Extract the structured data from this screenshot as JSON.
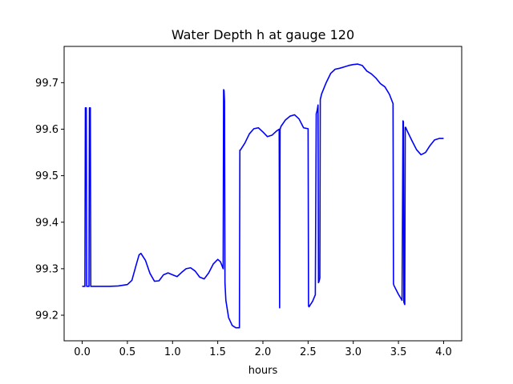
{
  "chart_data": {
    "type": "line",
    "title": "Water Depth h at gauge 120",
    "xlabel": "hours",
    "ylabel": "",
    "xlim": [
      -0.2,
      4.2
    ],
    "ylim": [
      99.145,
      99.778
    ],
    "xticks": [
      0.0,
      0.5,
      1.0,
      1.5,
      2.0,
      2.5,
      3.0,
      3.5,
      4.0
    ],
    "xtick_labels": [
      "0.0",
      "0.5",
      "1.0",
      "1.5",
      "2.0",
      "2.5",
      "3.0",
      "3.5",
      "4.0"
    ],
    "yticks": [
      99.2,
      99.3,
      99.4,
      99.5,
      99.6,
      99.7
    ],
    "ytick_labels": [
      "99.2",
      "99.3",
      "99.4",
      "99.5",
      "99.6",
      "99.7"
    ],
    "grid": false,
    "color": "#0000ff",
    "series": [
      {
        "x": [
          0.0,
          0.03,
          0.035,
          0.045,
          0.05,
          0.055,
          0.075,
          0.08,
          0.09,
          0.095,
          0.1,
          0.3,
          0.4,
          0.5,
          0.55,
          0.6,
          0.63,
          0.65,
          0.7,
          0.75,
          0.8,
          0.85,
          0.9,
          0.95,
          1.0,
          1.05,
          1.1,
          1.15,
          1.2,
          1.25,
          1.3,
          1.35,
          1.4,
          1.45,
          1.5,
          1.53,
          1.55,
          1.56,
          1.565,
          1.57,
          1.575,
          1.58,
          1.59,
          1.62,
          1.66,
          1.7,
          1.74,
          1.745,
          1.75,
          1.8,
          1.85,
          1.9,
          1.95,
          2.0,
          2.05,
          2.1,
          2.15,
          2.18,
          2.185,
          2.19,
          2.2,
          2.25,
          2.3,
          2.35,
          2.4,
          2.45,
          2.5,
          2.505,
          2.51,
          2.55,
          2.58,
          2.59,
          2.6,
          2.61,
          2.615,
          2.62,
          2.63,
          2.635,
          2.65,
          2.7,
          2.75,
          2.8,
          2.85,
          2.9,
          2.95,
          3.0,
          3.05,
          3.1,
          3.15,
          3.2,
          3.25,
          3.3,
          3.35,
          3.4,
          3.44,
          3.445,
          3.45,
          3.5,
          3.54,
          3.55,
          3.555,
          3.56,
          3.57,
          3.575,
          3.58,
          3.6,
          3.65,
          3.7,
          3.75,
          3.8,
          3.85,
          3.9,
          3.95,
          4.0
        ],
        "y": [
          99.262,
          99.262,
          99.646,
          99.646,
          99.262,
          99.262,
          99.262,
          99.646,
          99.646,
          99.262,
          99.262,
          99.262,
          99.263,
          99.266,
          99.275,
          99.31,
          99.33,
          99.333,
          99.318,
          99.29,
          99.273,
          99.274,
          99.287,
          99.291,
          99.287,
          99.283,
          99.292,
          99.3,
          99.302,
          99.295,
          99.282,
          99.278,
          99.291,
          99.31,
          99.32,
          99.315,
          99.305,
          99.3,
          99.685,
          99.683,
          99.66,
          99.27,
          99.232,
          99.195,
          99.178,
          99.173,
          99.173,
          99.555,
          99.555,
          99.57,
          99.59,
          99.601,
          99.603,
          99.594,
          99.584,
          99.587,
          99.596,
          99.6,
          99.216,
          99.6,
          99.606,
          99.62,
          99.628,
          99.631,
          99.622,
          99.603,
          99.601,
          99.22,
          99.218,
          99.23,
          99.244,
          99.633,
          99.64,
          99.652,
          99.27,
          99.272,
          99.28,
          99.664,
          99.676,
          99.7,
          99.72,
          99.729,
          99.731,
          99.734,
          99.737,
          99.739,
          99.74,
          99.737,
          99.725,
          99.719,
          99.71,
          99.698,
          99.691,
          99.675,
          99.655,
          99.268,
          99.264,
          99.245,
          99.232,
          99.618,
          99.616,
          99.228,
          99.223,
          99.604,
          99.604,
          99.595,
          99.575,
          99.556,
          99.545,
          99.55,
          99.565,
          99.577,
          99.58,
          99.58
        ]
      }
    ]
  }
}
